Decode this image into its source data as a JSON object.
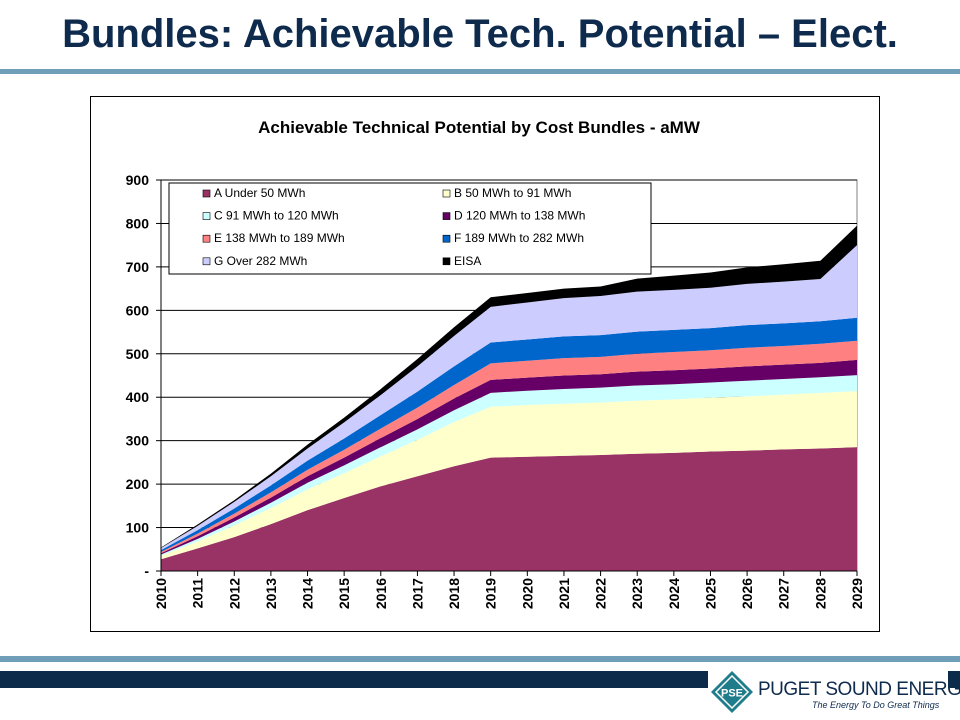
{
  "slide": {
    "title": "Bundles: Achievable Tech. Potential – Elect."
  },
  "logo": {
    "mark": "PSE",
    "name": "PUGET SOUND ENERGY",
    "tagline": "The Energy To Do Great Things"
  },
  "chart_data": {
    "type": "area",
    "stacked": true,
    "title": "Achievable Technical Potential by Cost Bundles - aMW",
    "xlabel": "",
    "ylabel": "",
    "ylim": [
      0,
      900
    ],
    "yticks": [
      "-",
      "100",
      "200",
      "300",
      "400",
      "500",
      "600",
      "700",
      "800",
      "900"
    ],
    "ytick_values": [
      0,
      100,
      200,
      300,
      400,
      500,
      600,
      700,
      800,
      900
    ],
    "grid": true,
    "legend_position": "top-inside",
    "x": [
      "2010",
      "2011",
      "2012",
      "2013",
      "2014",
      "2015",
      "2016",
      "2017",
      "2018",
      "2019",
      "2020",
      "2021",
      "2022",
      "2023",
      "2024",
      "2025",
      "2026",
      "2027",
      "2028",
      "2029"
    ],
    "series": [
      {
        "name": "A Under 50 MWh",
        "color": "#993366",
        "values": [
          27,
          52,
          78,
          108,
          140,
          168,
          195,
          218,
          241,
          261,
          263,
          265,
          267,
          270,
          272,
          275,
          277,
          280,
          282,
          285
        ]
      },
      {
        "name": "B 50 MWh to 91 MWh",
        "color": "#ffffcc",
        "values": [
          8,
          16,
          27,
          37,
          48,
          57,
          69,
          84,
          102,
          117,
          119,
          120,
          121,
          122,
          123,
          124,
          125,
          126,
          128,
          129
        ]
      },
      {
        "name": "C 91 MWh to 120 MWh",
        "color": "#ccffff",
        "values": [
          3,
          6,
          9,
          12,
          15,
          18,
          21,
          24,
          27,
          32,
          33,
          34,
          34,
          35,
          35,
          35,
          36,
          36,
          36,
          37
        ]
      },
      {
        "name": "D 120 MWh to 138 MWh",
        "color": "#660066",
        "values": [
          3,
          6,
          9,
          12,
          15,
          18,
          21,
          24,
          27,
          30,
          30,
          31,
          31,
          32,
          32,
          32,
          33,
          33,
          33,
          35
        ]
      },
      {
        "name": "E 138 MWh to 189 MWh",
        "color": "#ff8080",
        "values": [
          3,
          6,
          9,
          12,
          15,
          18,
          22,
          26,
          31,
          38,
          39,
          40,
          40,
          41,
          42,
          42,
          43,
          43,
          44,
          44
        ]
      },
      {
        "name": "F 189 MWh to 282 MWh",
        "color": "#0066cc",
        "values": [
          4,
          8,
          12,
          16,
          21,
          26,
          31,
          37,
          43,
          48,
          49,
          50,
          50,
          51,
          51,
          51,
          52,
          52,
          52,
          53
        ]
      },
      {
        "name": "G Over 282 MWh",
        "color": "#ccccff",
        "values": [
          5,
          10,
          15,
          21,
          28,
          37,
          46,
          58,
          70,
          82,
          85,
          88,
          90,
          92,
          92,
          93,
          95,
          96,
          97,
          167
        ]
      },
      {
        "name": "EISA",
        "color": "#000000",
        "values": [
          1,
          3,
          4,
          6,
          9,
          11,
          14,
          17,
          20,
          22,
          22,
          22,
          22,
          30,
          33,
          35,
          38,
          40,
          42,
          45
        ]
      }
    ]
  }
}
